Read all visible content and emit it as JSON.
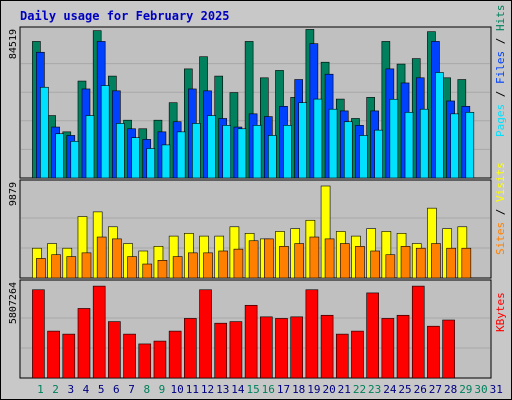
{
  "chart_data": {
    "type": "bar",
    "title": "Daily usage for February 2025",
    "colors": {
      "background": "#c8c8c8",
      "plot": "#c0c0c0",
      "title": "#0000c0",
      "hits": "#00805c",
      "files": "#0040ff",
      "pages": "#00e0ff",
      "visits": "#ffff00",
      "sites": "#ff8000",
      "kbytes": "#ff0000",
      "weekday": "#000080",
      "weekend": "#00805c"
    },
    "days": [
      "1",
      "2",
      "3",
      "4",
      "5",
      "6",
      "7",
      "8",
      "9",
      "10",
      "11",
      "12",
      "13",
      "14",
      "15",
      "16",
      "17",
      "18",
      "19",
      "20",
      "21",
      "22",
      "23",
      "24",
      "25",
      "26",
      "27",
      "28",
      "29",
      "30",
      "31"
    ],
    "weekend_days": [
      "1",
      "2",
      "8",
      "9",
      "15",
      "16",
      "22",
      "23",
      "29",
      "30"
    ],
    "panels": [
      {
        "id": "hits",
        "max_label": "84519",
        "ymax": 84519,
        "right_labels": [
          {
            "text": "Pages",
            "color": "#00e0ff"
          },
          {
            "text": " / ",
            "color": "#000000"
          },
          {
            "text": "Files",
            "color": "#0040ff"
          },
          {
            "text": " / ",
            "color": "#000000"
          },
          {
            "text": "Hits",
            "color": "#00805c"
          }
        ],
        "series": [
          {
            "name": "Hits",
            "color": "#00805c",
            "values": [
              79600,
              36400,
              26900,
              56500,
              85900,
              59400,
              33700,
              28700,
              33700,
              43900,
              63600,
              70700,
              59400,
              49800,
              79600,
              58400,
              62700,
              47000,
              86600,
              67500,
              46000,
              34700,
              47000,
              79600,
              66400,
              69600,
              85300,
              58400,
              57400,
              null,
              null
            ]
          },
          {
            "name": "Files",
            "color": "#0040ff",
            "values": [
              73300,
              29700,
              24800,
              51900,
              79600,
              50800,
              28700,
              22500,
              26900,
              32800,
              51900,
              50800,
              34700,
              29700,
              37400,
              35800,
              41800,
              57400,
              78300,
              60500,
              39100,
              30700,
              39100,
              63600,
              55400,
              58400,
              79600,
              44900,
              41800,
              null,
              null
            ]
          },
          {
            "name": "Pages",
            "color": "#00e0ff",
            "values": [
              52900,
              25800,
              21400,
              36400,
              53900,
              31800,
              23500,
              17200,
              19300,
              26900,
              31800,
              36400,
              30700,
              28700,
              30700,
              24800,
              30700,
              43900,
              46000,
              40100,
              32800,
              24800,
              27900,
              45900,
              38300,
              40100,
              61500,
              37400,
              38300,
              null,
              null
            ]
          }
        ]
      },
      {
        "id": "visits",
        "max_label": "9879",
        "ymax": 9879,
        "right_labels": [
          {
            "text": "Sites",
            "color": "#ff8000"
          },
          {
            "text": " / ",
            "color": "#000000"
          },
          {
            "text": "Visits",
            "color": "#ffff00"
          }
        ],
        "series": [
          {
            "name": "Visits",
            "color": "#ffff00",
            "values": [
              3200,
              3700,
              3200,
              6600,
              7100,
              5500,
              3700,
              2900,
              3400,
              4500,
              4800,
              4500,
              4500,
              5500,
              4800,
              4200,
              5000,
              5300,
              6200,
              9879,
              5000,
              4500,
              5300,
              5000,
              4800,
              3700,
              7500,
              5300,
              5500,
              null,
              null
            ]
          },
          {
            "name": "Sites",
            "color": "#ff8000",
            "values": [
              2100,
              2500,
              2300,
              2700,
              4400,
              4200,
              2300,
              1500,
              1900,
              2300,
              2700,
              2700,
              2900,
              3100,
              4000,
              4200,
              3400,
              3700,
              4400,
              4200,
              3700,
              3400,
              2900,
              2500,
              3400,
              3200,
              3700,
              3200,
              3200,
              null,
              null
            ]
          }
        ]
      },
      {
        "id": "kbytes",
        "max_label": "5807264",
        "ymax": 5807264,
        "right_labels": [
          {
            "text": "KBytes",
            "color": "#ff0000"
          }
        ],
        "series": [
          {
            "name": "KBytes",
            "color": "#ff0000",
            "values": [
              5570000,
              2960000,
              2770000,
              4390000,
              5800000,
              3560000,
              2770000,
              2150000,
              2330000,
              2960000,
              3760000,
              5570000,
              3460000,
              3560000,
              4590000,
              3860000,
              3760000,
              3860000,
              5570000,
              3960000,
              2770000,
              2960000,
              5370000,
              3760000,
              3960000,
              5800000,
              3270000,
              3660000,
              null,
              null,
              null
            ]
          }
        ]
      }
    ]
  }
}
